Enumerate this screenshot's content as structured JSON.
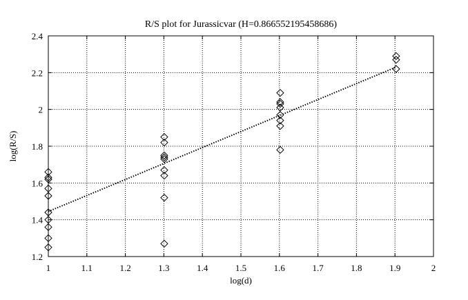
{
  "chart_data": {
    "type": "scatter",
    "title": "R/S plot for Jurassicvar (H=0.866552195458686)",
    "xlabel": "log(d)",
    "ylabel": "log(R/S)",
    "xlim": [
      1,
      2
    ],
    "ylim": [
      1.2,
      2.4
    ],
    "xticks": [
      "1",
      "1.1",
      "1.2",
      "1.3",
      "1.4",
      "1.5",
      "1.6",
      "1.7",
      "1.8",
      "1.9",
      "2"
    ],
    "yticks": [
      "1.2",
      "1.4",
      "1.6",
      "1.8",
      "2",
      "2.2",
      "2.4"
    ],
    "grid": true,
    "legend": "none",
    "series": [
      {
        "marker": "diamond",
        "points": [
          [
            1.0,
            1.66
          ],
          [
            1.0,
            1.63
          ],
          [
            1.0,
            1.62
          ],
          [
            1.0,
            1.57
          ],
          [
            1.0,
            1.53
          ],
          [
            1.0,
            1.44
          ],
          [
            1.0,
            1.4
          ],
          [
            1.0,
            1.36
          ],
          [
            1.0,
            1.3
          ],
          [
            1.0,
            1.25
          ],
          [
            1.301,
            1.85
          ],
          [
            1.301,
            1.82
          ],
          [
            1.301,
            1.75
          ],
          [
            1.301,
            1.74
          ],
          [
            1.301,
            1.73
          ],
          [
            1.301,
            1.67
          ],
          [
            1.301,
            1.64
          ],
          [
            1.301,
            1.52
          ],
          [
            1.301,
            1.27
          ],
          [
            1.602,
            2.09
          ],
          [
            1.602,
            2.04
          ],
          [
            1.602,
            2.03
          ],
          [
            1.602,
            2.01
          ],
          [
            1.602,
            1.97
          ],
          [
            1.602,
            1.94
          ],
          [
            1.602,
            1.91
          ],
          [
            1.602,
            1.78
          ],
          [
            1.903,
            2.29
          ],
          [
            1.903,
            2.27
          ],
          [
            1.903,
            2.22
          ]
        ]
      },
      {
        "line": "dotted",
        "points": [
          [
            1.0,
            1.445
          ],
          [
            1.903,
            2.23
          ]
        ]
      }
    ]
  }
}
